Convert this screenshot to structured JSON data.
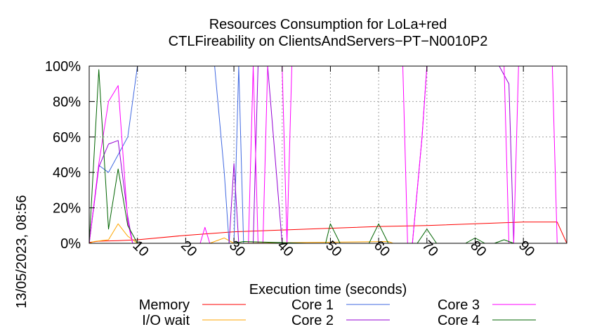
{
  "chart_data": {
    "type": "line",
    "title": "Resources Consumption for LoLa+red",
    "subtitle": "CTLFireability on ClientsAndServers−PT−N0010P2",
    "xlabel": "Execution time (seconds)",
    "ylabel": "",
    "side_label": "13/05/2023, 08:56",
    "xlim": [
      0,
      99
    ],
    "ylim": [
      0,
      100
    ],
    "x_ticks": [
      10,
      20,
      30,
      40,
      50,
      60,
      70,
      80,
      90
    ],
    "y_ticks": [
      0,
      20,
      40,
      60,
      80,
      100
    ],
    "y_tick_labels": [
      "0%",
      "20%",
      "40%",
      "60%",
      "80%",
      "100%"
    ],
    "grid": true,
    "legend_position": "bottom",
    "series": [
      {
        "name": "Memory",
        "color": "#ff0000",
        "points": [
          [
            0,
            0.5
          ],
          [
            2,
            1.2
          ],
          [
            6,
            1.5
          ],
          [
            10,
            2
          ],
          [
            20,
            4.5
          ],
          [
            30,
            6.5
          ],
          [
            40,
            7.5
          ],
          [
            50,
            8.5
          ],
          [
            60,
            9.5
          ],
          [
            70,
            10
          ],
          [
            80,
            11
          ],
          [
            90,
            12
          ],
          [
            97,
            12
          ],
          [
            99,
            0
          ]
        ]
      },
      {
        "name": "I/O wait",
        "color": "#ffa500",
        "points": [
          [
            0,
            0
          ],
          [
            1,
            1
          ],
          [
            4,
            2
          ],
          [
            6,
            11
          ],
          [
            8,
            4
          ],
          [
            10,
            0
          ],
          [
            25,
            0
          ],
          [
            28,
            3
          ],
          [
            30,
            0
          ],
          [
            62,
            1
          ],
          [
            63,
            0
          ],
          [
            99,
            0
          ]
        ]
      },
      {
        "name": "Core 1",
        "color": "#4169e1",
        "points": [
          [
            0,
            0
          ],
          [
            2,
            44
          ],
          [
            4,
            40
          ],
          [
            6,
            50
          ],
          [
            8,
            60
          ],
          [
            10,
            100
          ],
          [
            26,
            100
          ],
          [
            28,
            40
          ],
          [
            29,
            0
          ],
          [
            30,
            0
          ],
          [
            31,
            100
          ],
          [
            32,
            0
          ],
          [
            33,
            0
          ],
          [
            99,
            0
          ]
        ]
      },
      {
        "name": "Core 2",
        "color": "#9400d3",
        "points": [
          [
            0,
            0
          ],
          [
            2,
            43
          ],
          [
            4,
            56
          ],
          [
            6,
            58
          ],
          [
            8,
            15
          ],
          [
            9,
            0
          ],
          [
            29,
            0
          ],
          [
            30,
            45
          ],
          [
            31,
            0
          ],
          [
            34,
            0
          ],
          [
            35,
            100
          ],
          [
            37,
            100
          ],
          [
            40,
            0
          ],
          [
            67,
            0
          ],
          [
            69,
            60
          ],
          [
            70,
            100
          ],
          [
            85,
            100
          ],
          [
            87,
            90
          ],
          [
            88,
            0
          ],
          [
            99,
            0
          ]
        ]
      },
      {
        "name": "Core 3",
        "color": "#ff00ff",
        "points": [
          [
            0,
            0
          ],
          [
            2,
            45
          ],
          [
            4,
            80
          ],
          [
            6,
            89
          ],
          [
            8,
            12
          ],
          [
            9,
            0
          ],
          [
            23,
            0
          ],
          [
            24,
            9
          ],
          [
            25,
            0
          ],
          [
            33,
            0
          ],
          [
            34,
            100
          ],
          [
            35,
            0
          ],
          [
            36,
            0
          ],
          [
            37,
            100
          ],
          [
            40,
            100
          ],
          [
            41,
            0
          ],
          [
            42,
            100
          ],
          [
            65,
            100
          ],
          [
            66,
            0
          ],
          [
            67,
            0
          ],
          [
            69,
            60
          ],
          [
            70,
            100
          ],
          [
            86,
            100
          ],
          [
            87,
            0
          ],
          [
            88,
            0
          ],
          [
            89,
            100
          ],
          [
            96,
            100
          ],
          [
            97,
            0
          ],
          [
            99,
            0
          ]
        ]
      },
      {
        "name": "Core 4",
        "color": "#006400",
        "points": [
          [
            0,
            0
          ],
          [
            2,
            98
          ],
          [
            4,
            8
          ],
          [
            6,
            42
          ],
          [
            8,
            10
          ],
          [
            10,
            0
          ],
          [
            30,
            0
          ],
          [
            32,
            1
          ],
          [
            45,
            0
          ],
          [
            49,
            0
          ],
          [
            50,
            11
          ],
          [
            52,
            0
          ],
          [
            58,
            0
          ],
          [
            60,
            11
          ],
          [
            62,
            0
          ],
          [
            68,
            0
          ],
          [
            70,
            8
          ],
          [
            72,
            0
          ],
          [
            78,
            0
          ],
          [
            80,
            3
          ],
          [
            82,
            0
          ],
          [
            84,
            0
          ],
          [
            86,
            2
          ],
          [
            88,
            0
          ],
          [
            99,
            0
          ]
        ]
      }
    ]
  }
}
